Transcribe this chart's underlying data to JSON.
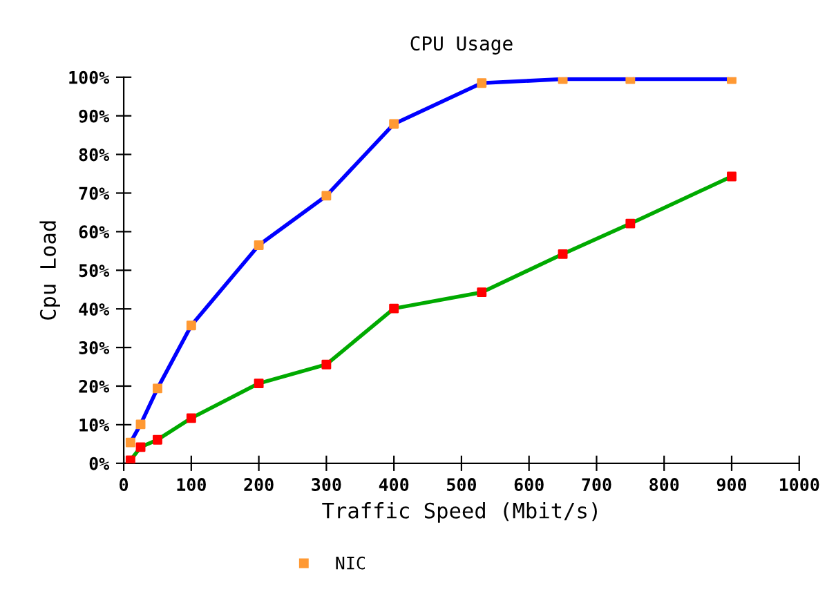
{
  "chart_data": {
    "type": "line",
    "title": "CPU Usage",
    "xlabel": "Traffic Speed (Mbit/s)",
    "ylabel": "Cpu Load",
    "x": [
      10,
      25,
      50,
      100,
      200,
      300,
      400,
      530,
      650,
      750,
      900
    ],
    "series": [
      {
        "color": "#0000ff",
        "marker": "none",
        "values": [
          5.4,
          10.1,
          19.4,
          35.7,
          56.5,
          69.3,
          87.9,
          98.5,
          99.5,
          99.5,
          99.5
        ]
      },
      {
        "color": "#00aa00",
        "marker": "none",
        "values": [
          0.8,
          4.2,
          6.1,
          11.7,
          20.7,
          25.6,
          40.1,
          44.3,
          54.2,
          62.1,
          74.3
        ]
      },
      {
        "type": "scatter",
        "name": "NIC",
        "color": "#ff9933",
        "marker": "square",
        "values": [
          5.4,
          10.1,
          19.4,
          35.7,
          56.5,
          69.3,
          87.9,
          98.5,
          99.5,
          99.5,
          99.5
        ]
      },
      {
        "type": "scatter",
        "color": "#ff0000",
        "marker": "square",
        "values": [
          0.8,
          4.2,
          6.1,
          11.7,
          20.7,
          25.6,
          40.1,
          44.3,
          54.2,
          62.1,
          74.3
        ]
      }
    ],
    "xlim": [
      0,
      1000
    ],
    "xticks": [
      0,
      100,
      200,
      300,
      400,
      500,
      600,
      700,
      800,
      900,
      1000
    ],
    "ylim": [
      0,
      100
    ],
    "yticks": [
      {
        "value": 0,
        "label": "0%"
      },
      {
        "value": 10,
        "label": "10%"
      },
      {
        "value": 20,
        "label": "20%"
      },
      {
        "value": 30,
        "label": "30%"
      },
      {
        "value": 40,
        "label": "40%"
      },
      {
        "value": 50,
        "label": "50%"
      },
      {
        "value": 60,
        "label": "60%"
      },
      {
        "value": 70,
        "label": "70%"
      },
      {
        "value": 80,
        "label": "80%"
      },
      {
        "value": 90,
        "label": "90%"
      },
      {
        "value": 100,
        "label": "100%"
      }
    ],
    "legend": "bottom",
    "grid": false
  }
}
